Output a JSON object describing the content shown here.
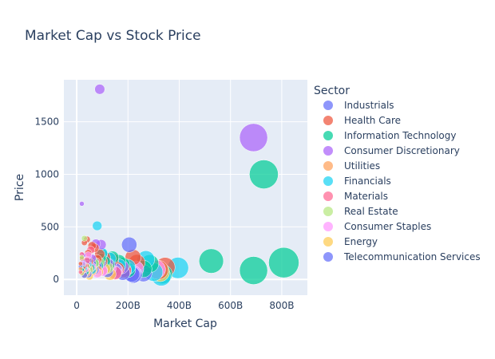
{
  "chart_data": {
    "type": "scatter",
    "title": "Market Cap vs Stock Price",
    "xlabel": "Market Cap",
    "ylabel": "Price",
    "xlim": [
      -50,
      900
    ],
    "ylim": [
      -150,
      1900
    ],
    "x_ticks": [
      0,
      200,
      400,
      600,
      800
    ],
    "x_tick_labels": [
      "0",
      "200B",
      "400B",
      "600B",
      "800B"
    ],
    "y_ticks": [
      0,
      500,
      1000,
      1500
    ],
    "y_tick_labels": [
      "0",
      "500",
      "1000",
      "1500"
    ],
    "grid": true,
    "legend_title": "Sector",
    "legend_position": "right",
    "size_encoding": "market cap",
    "series": [
      {
        "name": "Industrials",
        "color": "#636efa",
        "points": [
          [
            15,
            120
          ],
          [
            20,
            95
          ],
          [
            25,
            160
          ],
          [
            30,
            140
          ],
          [
            35,
            60
          ],
          [
            40,
            85
          ],
          [
            45,
            175
          ],
          [
            55,
            110
          ],
          [
            60,
            150
          ],
          [
            70,
            90
          ],
          [
            80,
            130
          ],
          [
            95,
            160
          ],
          [
            110,
            190
          ],
          [
            120,
            75
          ],
          [
            130,
            140
          ],
          [
            150,
            95
          ],
          [
            180,
            60
          ],
          [
            205,
            330
          ],
          [
            215,
            50
          ],
          [
            225,
            45
          ],
          [
            260,
            60
          ]
        ]
      },
      {
        "name": "Health Care",
        "color": "#ef553b",
        "points": [
          [
            15,
            150
          ],
          [
            20,
            200
          ],
          [
            25,
            110
          ],
          [
            30,
            350
          ],
          [
            35,
            130
          ],
          [
            40,
            380
          ],
          [
            45,
            250
          ],
          [
            50,
            170
          ],
          [
            60,
            320
          ],
          [
            70,
            300
          ],
          [
            80,
            190
          ],
          [
            90,
            240
          ],
          [
            100,
            170
          ],
          [
            110,
            210
          ],
          [
            125,
            130
          ],
          [
            140,
            190
          ],
          [
            160,
            100
          ],
          [
            185,
            80
          ],
          [
            220,
            210
          ],
          [
            235,
            160
          ],
          [
            320,
            90
          ],
          [
            345,
            115
          ]
        ]
      },
      {
        "name": "Information Technology",
        "color": "#00cc96",
        "points": [
          [
            20,
            90
          ],
          [
            25,
            140
          ],
          [
            35,
            70
          ],
          [
            40,
            120
          ],
          [
            55,
            110
          ],
          [
            70,
            160
          ],
          [
            85,
            130
          ],
          [
            95,
            200
          ],
          [
            100,
            240
          ],
          [
            110,
            170
          ],
          [
            125,
            140
          ],
          [
            140,
            210
          ],
          [
            165,
            170
          ],
          [
            180,
            140
          ],
          [
            200,
            90
          ],
          [
            260,
            100
          ],
          [
            285,
            150
          ],
          [
            335,
            50
          ],
          [
            525,
            175
          ],
          [
            690,
            85
          ],
          [
            730,
            1000
          ],
          [
            808,
            160
          ]
        ]
      },
      {
        "name": "Consumer Discretionary",
        "color": "#ab63fa",
        "points": [
          [
            20,
            720
          ],
          [
            25,
            230
          ],
          [
            30,
            120
          ],
          [
            40,
            150
          ],
          [
            50,
            90
          ],
          [
            60,
            200
          ],
          [
            75,
            340
          ],
          [
            90,
            1810
          ],
          [
            95,
            330
          ],
          [
            120,
            150
          ],
          [
            150,
            70
          ],
          [
            175,
            120
          ],
          [
            690,
            1350
          ]
        ]
      },
      {
        "name": "Utilities",
        "color": "#ffa15a",
        "points": [
          [
            15,
            100
          ],
          [
            25,
            80
          ],
          [
            30,
            130
          ],
          [
            40,
            60
          ],
          [
            50,
            110
          ],
          [
            60,
            75
          ],
          [
            80,
            90
          ]
        ]
      },
      {
        "name": "Financials",
        "color": "#19d3f3",
        "points": [
          [
            20,
            60
          ],
          [
            30,
            110
          ],
          [
            45,
            140
          ],
          [
            60,
            90
          ],
          [
            80,
            510
          ],
          [
            100,
            250
          ],
          [
            130,
            200
          ],
          [
            165,
            130
          ],
          [
            200,
            120
          ],
          [
            270,
            190
          ],
          [
            300,
            70
          ],
          [
            330,
            30
          ],
          [
            395,
            110
          ]
        ]
      },
      {
        "name": "Materials",
        "color": "#ff6692",
        "points": [
          [
            15,
            70
          ],
          [
            20,
            240
          ],
          [
            30,
            130
          ],
          [
            40,
            180
          ],
          [
            55,
            280
          ],
          [
            75,
            160
          ],
          [
            100,
            90
          ],
          [
            150,
            60
          ],
          [
            185,
            90
          ]
        ]
      },
      {
        "name": "Real Estate",
        "color": "#b6e880",
        "points": [
          [
            20,
            210
          ],
          [
            30,
            390
          ],
          [
            40,
            120
          ],
          [
            50,
            90
          ],
          [
            70,
            150
          ],
          [
            90,
            160
          ],
          [
            120,
            110
          ]
        ]
      },
      {
        "name": "Consumer Staples",
        "color": "#ff97ff",
        "points": [
          [
            25,
            150
          ],
          [
            35,
            95
          ],
          [
            45,
            230
          ],
          [
            60,
            120
          ],
          [
            80,
            60
          ],
          [
            100,
            80
          ],
          [
            130,
            100
          ],
          [
            155,
            90
          ],
          [
            220,
            60
          ],
          [
            230,
            100
          ],
          [
            310,
            95
          ]
        ]
      },
      {
        "name": "Energy",
        "color": "#fecb52",
        "points": [
          [
            20,
            60
          ],
          [
            30,
            40
          ],
          [
            40,
            80
          ],
          [
            50,
            30
          ],
          [
            65,
            90
          ],
          [
            85,
            70
          ],
          [
            110,
            100
          ],
          [
            130,
            50
          ],
          [
            325,
            70
          ]
        ]
      },
      {
        "name": "Telecommunication Services",
        "color": "#636efa",
        "points": [
          [
            30,
            40
          ],
          [
            45,
            50
          ],
          [
            220,
            40
          ]
        ]
      }
    ]
  }
}
